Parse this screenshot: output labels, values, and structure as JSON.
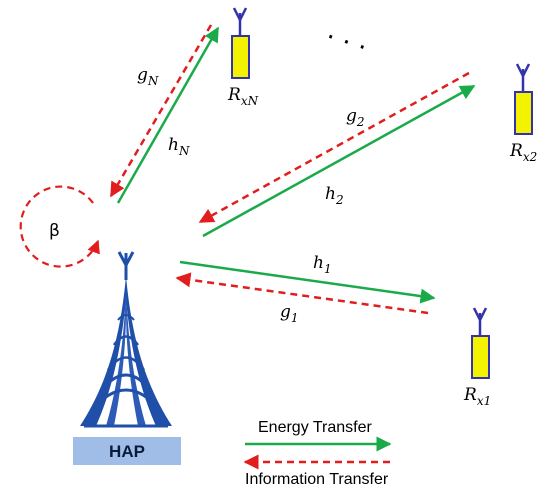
{
  "hap": {
    "label": "HAP"
  },
  "loop": {
    "label": "β"
  },
  "dots": "· · ·",
  "receivers": [
    {
      "main": "R",
      "sub": "xN"
    },
    {
      "main": "R",
      "sub": "x2"
    },
    {
      "main": "R",
      "sub": "x1"
    }
  ],
  "links": {
    "gN": {
      "main": "g",
      "sub": "N"
    },
    "hN": {
      "main": "h",
      "sub": "N"
    },
    "g2": {
      "main": "g",
      "sub": "2"
    },
    "h2": {
      "main": "h",
      "sub": "2"
    },
    "h1": {
      "main": "h",
      "sub": "1"
    },
    "g1": {
      "main": "g",
      "sub": "1"
    }
  },
  "legend": {
    "energy": "Energy Transfer",
    "information": "Information Transfer"
  },
  "colors": {
    "energy": "#1aaa4a",
    "information": "#e21d1d",
    "tower": "#1f4fa8",
    "receiver_fill": "#f3f300",
    "receiver_stroke": "#3333aa",
    "hap_box": "#9fbde6"
  }
}
